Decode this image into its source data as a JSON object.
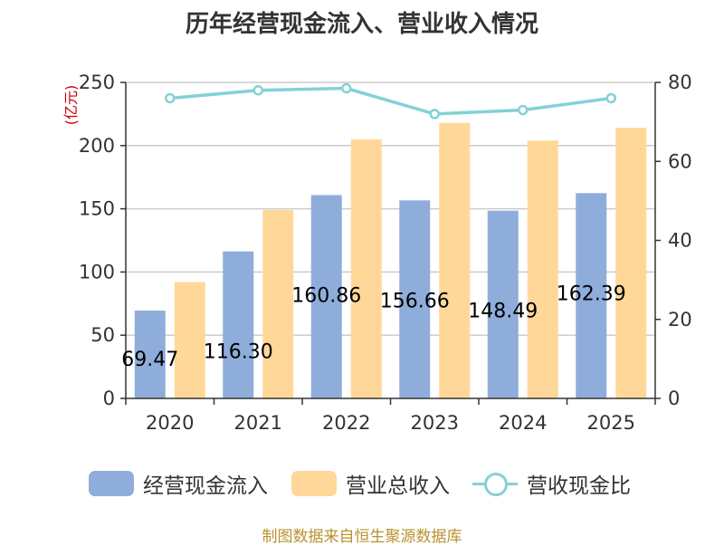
{
  "chart_data": {
    "type": "bar",
    "title": "历年经营现金流入、营业收入情况",
    "categories": [
      "2020",
      "2021",
      "2022",
      "2023",
      "2024",
      "2025"
    ],
    "series": [
      {
        "name": "经营现金流入",
        "type": "bar",
        "axis": "left",
        "color": "#8fadda",
        "values": [
          69.47,
          116.3,
          160.86,
          156.66,
          148.49,
          162.39
        ],
        "labels": [
          "69.47",
          "116.30",
          "160.86",
          "156.66",
          "148.49",
          "162.39"
        ]
      },
      {
        "name": "营业总收入",
        "type": "bar",
        "axis": "left",
        "color": "#ffd899",
        "values": [
          92,
          149,
          205,
          218,
          204,
          214
        ]
      },
      {
        "name": "营收现金比",
        "type": "line",
        "axis": "right",
        "color": "#82d2d6",
        "values": [
          76,
          78,
          78.5,
          72,
          73,
          76
        ]
      }
    ],
    "left_axis": {
      "unit": "(亿元)",
      "ylim": [
        0,
        250
      ],
      "ticks": [
        "0",
        "50",
        "100",
        "150",
        "200",
        "250"
      ]
    },
    "right_axis": {
      "unit": "%",
      "ylim": [
        0,
        80
      ],
      "ticks": [
        "0",
        "20",
        "40",
        "60",
        "80"
      ]
    },
    "legend": [
      "经营现金流入",
      "营业总收入",
      "营收现金比"
    ],
    "grid": true
  },
  "source": "制图数据来自恒生聚源数据库"
}
